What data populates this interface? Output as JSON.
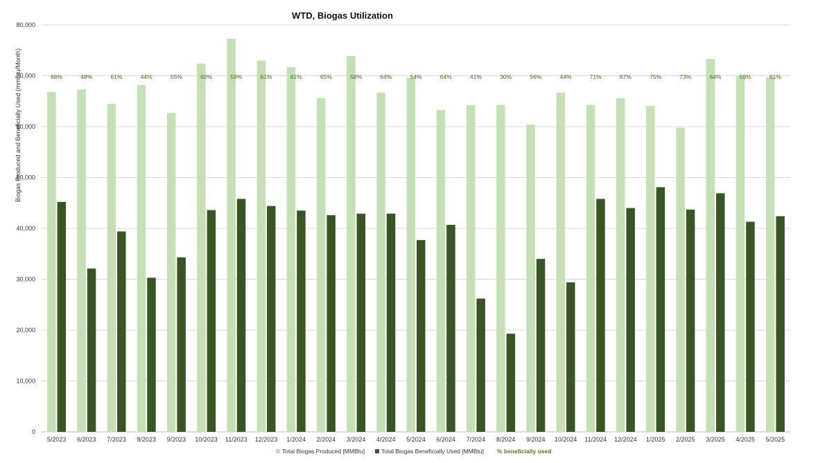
{
  "chart_data": {
    "type": "bar",
    "title": "WTD, Biogas Utilization",
    "ylabel": "Biogas Produced and Beneficially Used (mmBtu/Month)",
    "xlabel": "",
    "ylim": [
      0,
      80000
    ],
    "yticks": [
      0,
      10000,
      20000,
      30000,
      40000,
      50000,
      60000,
      70000,
      80000
    ],
    "ytick_labels": [
      "0",
      "10,000",
      "20,000",
      "30,000",
      "40,000",
      "50,000",
      "60,000",
      "70,000",
      "80,000"
    ],
    "grid": true,
    "legend_position": "bottom",
    "categories": [
      "5/2023",
      "6/2023",
      "7/2023",
      "8/2023",
      "9/2023",
      "10/2023",
      "11/2023",
      "12/2023",
      "1/2024",
      "2/2024",
      "3/2024",
      "4/2024",
      "5/2024",
      "6/2024",
      "7/2024",
      "8/2024",
      "9/2024",
      "10/2024",
      "11/2024",
      "12/2024",
      "1/2025",
      "2/2025",
      "3/2025",
      "4/2025",
      "5/2025"
    ],
    "series": [
      {
        "name": "Total Biogas Produced [MMBtu]",
        "color": "#c5e0b4",
        "values": [
          66800,
          67300,
          64500,
          68200,
          62700,
          72400,
          77300,
          73000,
          71700,
          65600,
          73900,
          66700,
          69600,
          63300,
          64200,
          64300,
          60400,
          66700,
          64300,
          65600,
          64100,
          59800,
          73300,
          70000,
          69700
        ]
      },
      {
        "name": "Total Biogas Beneficially Used [MMBtu]",
        "color": "#375623",
        "values": [
          45200,
          32100,
          39400,
          30300,
          34300,
          43600,
          45800,
          44400,
          43500,
          42600,
          42900,
          42900,
          37700,
          40700,
          26200,
          19300,
          34000,
          29400,
          45800,
          44000,
          48100,
          43700,
          46900,
          41300,
          42400
        ]
      }
    ],
    "percent_series": {
      "name": "% beneficially used",
      "color": "#4a7a1f",
      "labels": [
        "68%",
        "48%",
        "61%",
        "44%",
        "55%",
        "60%",
        "59%",
        "61%",
        "61%",
        "65%",
        "58%",
        "64%",
        "54%",
        "64%",
        "41%",
        "30%",
        "56%",
        "44%",
        "71%",
        "67%",
        "75%",
        "73%",
        "64%",
        "59%",
        "61%"
      ]
    }
  }
}
